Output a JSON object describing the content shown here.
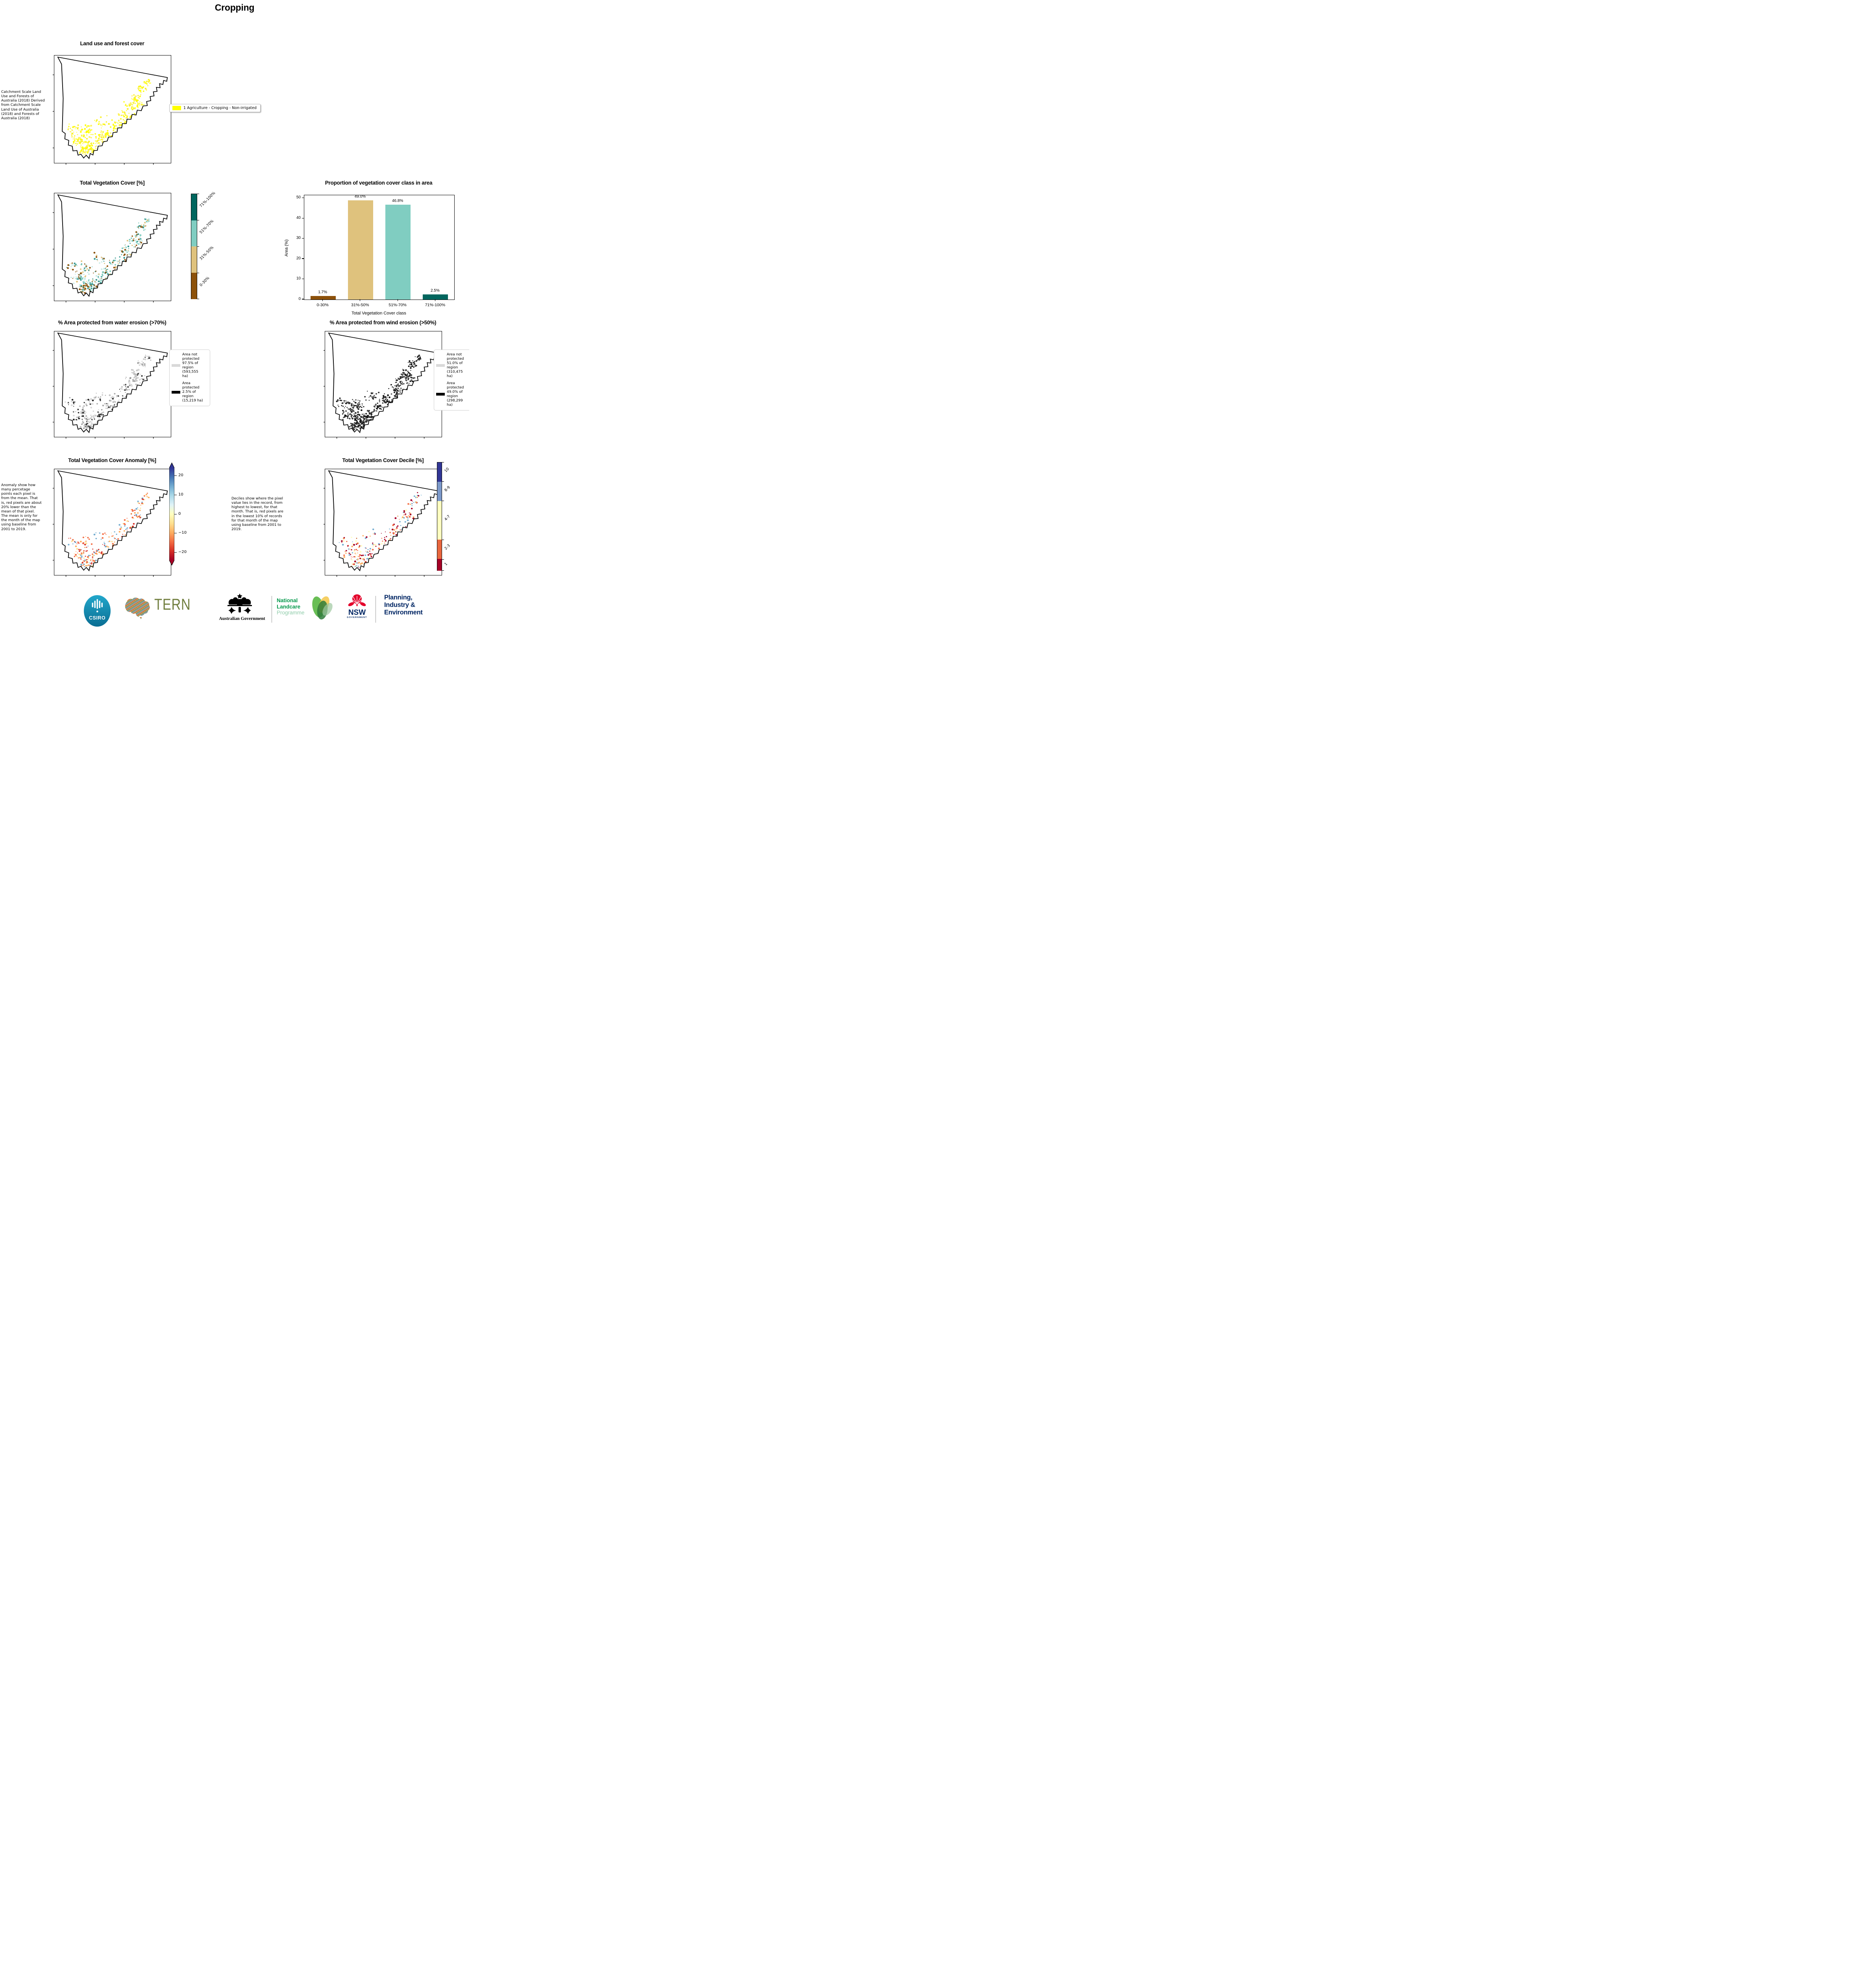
{
  "page_title": "Cropping",
  "panels": {
    "land_use": {
      "title": "Land use and forest cover",
      "side_text": " Catchment Scale Land Use and Forests of Australia (2018) Derived from Catchment Scale Land Use of Australia (2018) and Forests of Australia (2018)",
      "legend": {
        "swatch_color": "#ffff00",
        "label": "1 Agriculture - Cropping - Non-irrigated"
      }
    },
    "veg_cover": {
      "title": "Total Vegetation Cover [%]",
      "colorbar": [
        {
          "label": "71%-100%",
          "color": "#01665e"
        },
        {
          "label": "51%-70%",
          "color": "#80cdc1"
        },
        {
          "label": "31%-50%",
          "color": "#dfc27d"
        },
        {
          "label": "0-30%",
          "color": "#8c510a"
        }
      ]
    },
    "water_erosion": {
      "title": "% Area protected from water erosion (>70%)",
      "legend": [
        {
          "swatch_color": "#d9d9d9",
          "text": "Area not protected 97.5% of region (593,555 ha)"
        },
        {
          "swatch_color": "#000000",
          "text": "Area protected 2.5% of region (15,219 ha)"
        }
      ]
    },
    "wind_erosion": {
      "title": "% Area protected from wind erosion (>50%)",
      "legend": [
        {
          "swatch_color": "#d9d9d9",
          "text": "Area not protected 51.0% of region (310,475 ha)"
        },
        {
          "swatch_color": "#000000",
          "text": "Area protected 49.0% of region (298,299 ha)"
        }
      ]
    },
    "anomaly": {
      "title": "Total Vegetation Cover Anomaly [%]",
      "side_text": "Anomaly show how many percetage points each pixel is from the mean. That is, red pixels are about 20% lower than the mean of that pixel. The mean is only for the month of the map using baseline from 2001 to 2019.",
      "colorbar_ticks": [
        "20",
        "10",
        "0",
        "−10",
        "−20"
      ],
      "colorbar_tick_values": [
        20,
        10,
        0,
        -10,
        -20
      ],
      "colorbar_range": [
        24,
        -24
      ]
    },
    "decile": {
      "title": "Total Vegetation Cover Decile [%]",
      "side_text": "Deciles show where the pixel value lies in the record, from highest to lowest, for that month. That is, red pixels are in the lowest 10% of records for that month of the map using baseline from 2001 to 2019.",
      "colorbar": [
        {
          "label": "10",
          "color": "#313695",
          "frac": 0.178
        },
        {
          "label": "8-9",
          "color": "#7b98c9",
          "frac": 0.178
        },
        {
          "label": "4-7",
          "color": "#ffffbf",
          "frac": 0.359
        },
        {
          "label": "2-3",
          "color": "#e8663e",
          "frac": 0.18
        },
        {
          "label": "1",
          "color": "#a50026",
          "frac": 0.105
        }
      ]
    }
  },
  "chart_data": {
    "type": "bar",
    "title": "Proportion of vegetation cover class in area",
    "categories": [
      "0-30%",
      "31%-50%",
      "51%-70%",
      "71%-100%"
    ],
    "values": [
      1.7,
      49.0,
      46.8,
      2.5
    ],
    "value_labels": [
      "1.7%",
      "49.0%",
      "46.8%",
      "2.5%"
    ],
    "bar_colors": [
      "#8c510a",
      "#dfc27d",
      "#80cdc1",
      "#01665e"
    ],
    "xlabel": "Total Vegetation Cover class",
    "ylabel": "Area (%)",
    "ylim": [
      0,
      51.5
    ],
    "yticks": [
      0,
      10,
      20,
      30,
      40,
      50
    ],
    "grid": false,
    "legend_position": "none"
  },
  "map_palettes": {
    "landuse": [
      "#ffff00",
      "#f9f12a",
      "#fff45c"
    ],
    "veg": [
      "#dfc27d",
      "#80cdc1",
      "#35978f",
      "#8c510a",
      "#c7eae5"
    ],
    "water": [
      "#d6d6d6",
      "#c4c4c4",
      "#a8a8a8",
      "#2b2b2b"
    ],
    "wind": [
      "#141414",
      "#2e2e2e",
      "#4a4a4a"
    ],
    "anomaly": [
      "#f46d43",
      "#fdae61",
      "#d73027",
      "#74add1",
      "#fee090"
    ],
    "decile": [
      "#f46d43",
      "#fdae61",
      "#a50026",
      "#74add1",
      "#ffffbf"
    ]
  },
  "anomaly_gradient": [
    "#313695",
    "#4575b4",
    "#74add1",
    "#abd9e9",
    "#e0f3f8",
    "#ffffbf",
    "#fee090",
    "#fdae61",
    "#f46d43",
    "#d73027",
    "#a50026"
  ],
  "footer": {
    "csiro": "CSIRO",
    "tern": "TERN",
    "aus_gov": "Australian Government",
    "landcare_line1": "National",
    "landcare_line2": "Landcare",
    "landcare_line3": "Programme",
    "nsw": "NSW",
    "nsw_sub": "GOVERNMENT",
    "dept_line1": "Planning,",
    "dept_line2": "Industry &",
    "dept_line3": "Environment"
  }
}
